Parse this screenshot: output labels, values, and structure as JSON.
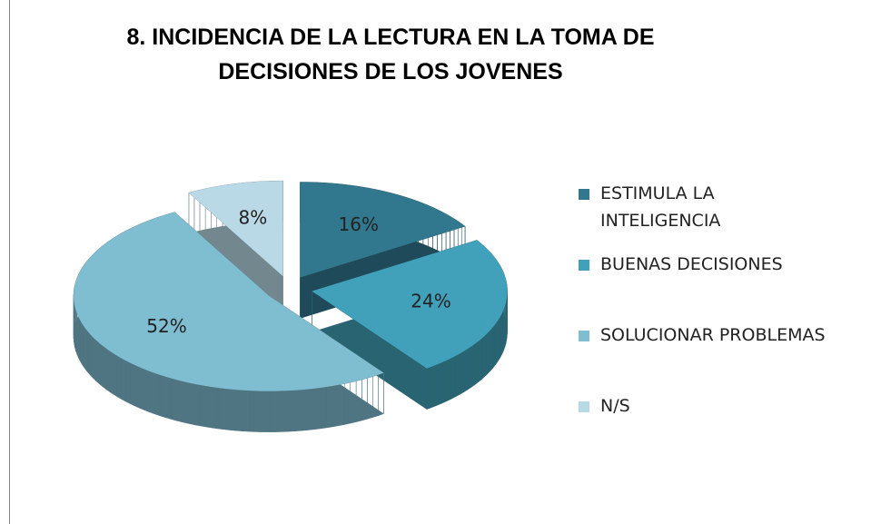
{
  "chart_data": {
    "type": "pie",
    "title": "8. INCIDENCIA DE LA LECTURA EN LA TOMA DE DECISIONES DE LOS JOVENES",
    "categories": [
      "ESTIMULA LA INTELIGENCIA",
      "BUENAS DECISIONES",
      "SOLUCIONAR PROBLEMAS",
      "N/S"
    ],
    "values": [
      16,
      24,
      52,
      8
    ],
    "value_labels": [
      "16%",
      "24%",
      "52%",
      "8%"
    ],
    "colors": [
      "#31788f",
      "#42a1ba",
      "#7fbdd1",
      "#b8d9e5"
    ],
    "legend": "right"
  }
}
